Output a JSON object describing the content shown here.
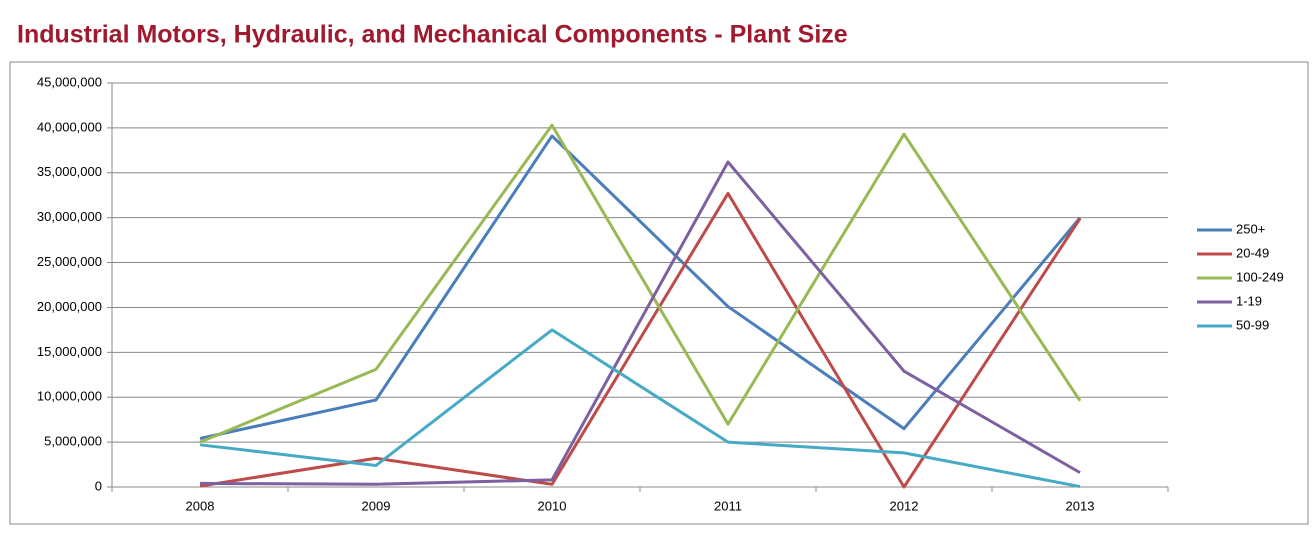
{
  "chart_data": {
    "type": "line",
    "title": "Industrial Motors, Hydraulic, and Mechanical Components - Plant Size",
    "categories": [
      "2008",
      "2009",
      "2010",
      "2011",
      "2012",
      "2013"
    ],
    "series": [
      {
        "name": "250+",
        "color": "#4a7ebb",
        "values": [
          5400000,
          9700000,
          39100000,
          20100000,
          6500000,
          30000000
        ]
      },
      {
        "name": "20-49",
        "color": "#be4b48",
        "values": [
          100000,
          3200000,
          300000,
          32700000,
          0,
          29900000
        ]
      },
      {
        "name": "100-249",
        "color": "#98b954",
        "values": [
          5000000,
          13100000,
          40300000,
          7000000,
          39300000,
          9600000
        ]
      },
      {
        "name": "1-19",
        "color": "#7d60a0",
        "values": [
          400000,
          300000,
          800000,
          36200000,
          12900000,
          1600000
        ]
      },
      {
        "name": "50-99",
        "color": "#46aac5",
        "values": [
          4700000,
          2400000,
          17500000,
          5000000,
          3800000,
          50000
        ]
      }
    ],
    "ylim": [
      0,
      45000000
    ],
    "yticks": [
      0,
      {
        "value": 5000000,
        "label": "5,000,000"
      },
      {
        "value": 10000000,
        "label": "10,000,000"
      },
      {
        "value": 15000000,
        "label": "15,000,000"
      },
      {
        "value": 20000000,
        "label": "20,000,000"
      },
      {
        "value": 25000000,
        "label": "25,000,000"
      },
      {
        "value": 30000000,
        "label": "30,000,000"
      },
      {
        "value": 35000000,
        "label": "35,000,000"
      },
      {
        "value": 40000000,
        "label": "40,000,000"
      },
      {
        "value": 45000000,
        "label": "45,000,000"
      }
    ],
    "grid": true,
    "legend": "right"
  }
}
